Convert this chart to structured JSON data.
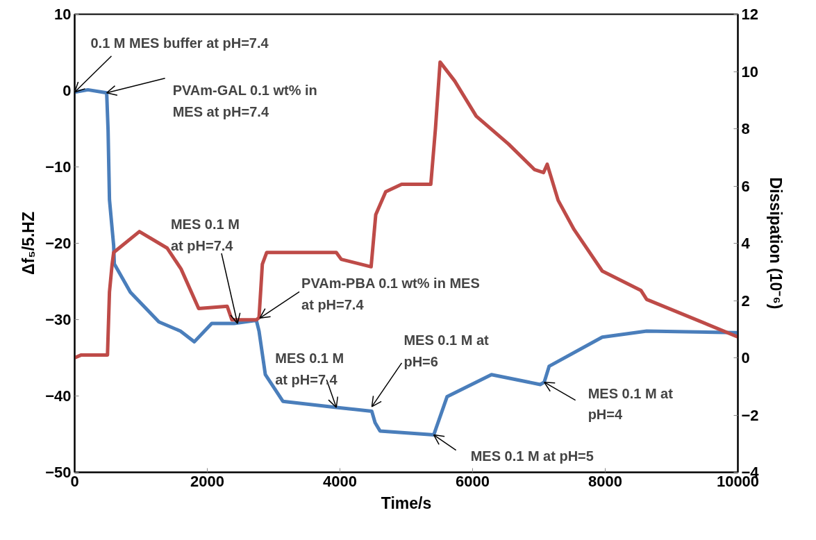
{
  "chart_data": {
    "type": "line",
    "xlabel": "Time/s",
    "ylabel": "Δf₅/5.HZ",
    "y2label": "Dissipation (10⁻⁶)",
    "xlim": [
      0,
      10000
    ],
    "xticks": [
      0,
      2000,
      4000,
      6000,
      8000,
      10000
    ],
    "ylim": [
      -50,
      10
    ],
    "yticks": [
      -50,
      -40,
      -30,
      -20,
      -10,
      0,
      10
    ],
    "y2lim": [
      -4,
      12
    ],
    "y2ticks": [
      -4,
      -2,
      0,
      2,
      4,
      6,
      8,
      10,
      12
    ],
    "grid": false,
    "marker": "none",
    "line_style": "solid",
    "series": [
      {
        "color": "#4a7ebb",
        "x": [
          0,
          200,
          483,
          504,
          525,
          588,
          598,
          840,
          1270,
          1595,
          1805,
          2067,
          2403,
          2740,
          2780,
          2875,
          3140,
          3945,
          4480,
          4530,
          4605,
          5415,
          5450,
          5615,
          6285,
          7020,
          7080,
          7155,
          7955,
          8625,
          9970,
          10000
        ],
        "values": [
          -0.2,
          0.1,
          -0.3,
          -5.2,
          -14.3,
          -20.3,
          -22.7,
          -26.4,
          -30.3,
          -31.5,
          -32.9,
          -30.5,
          -30.5,
          -30.1,
          -31.5,
          -37.2,
          -40.7,
          -41.5,
          -42,
          -43.5,
          -44.6,
          -45.1,
          -44.2,
          -40.1,
          -37.2,
          -38.5,
          -38.2,
          -36.1,
          -32.3,
          -31.5,
          -31.7,
          -31.8
        ]
      },
      {
        "color": "#be4b48",
        "axis": "y2",
        "x": [
          0,
          100,
          495,
          525,
          565,
          588,
          976,
          1396,
          1605,
          1870,
          2300,
          2370,
          2740,
          2780,
          2830,
          2896,
          3945,
          4020,
          4470,
          4540,
          4690,
          4930,
          5370,
          5440,
          5510,
          5730,
          6055,
          6540,
          6935,
          7070,
          7125,
          7290,
          7530,
          7955,
          8540,
          8625,
          10000
        ],
        "values": [
          0,
          0.1,
          0.1,
          2.3,
          3.27,
          3.68,
          4.41,
          3.83,
          3.1,
          1.72,
          1.8,
          1.33,
          1.33,
          1.4,
          3.27,
          3.68,
          3.68,
          3.44,
          3.18,
          5.0,
          5.8,
          6.06,
          6.06,
          8.0,
          10.33,
          9.67,
          8.44,
          7.47,
          6.57,
          6.47,
          6.76,
          5.5,
          4.48,
          3.03,
          2.35,
          2.04,
          0.73
        ]
      }
    ],
    "annotations": [
      {
        "text": "0.1 M MES buffer at  pH=7.4",
        "x": 0,
        "y": -0.2
      },
      {
        "text": "PVAm-GAL 0.1 wt% in\nMES at pH=7.4",
        "x": 483,
        "y": -0.3
      },
      {
        "text": "MES 0.1 M\nat pH=7.4",
        "x": 2455,
        "y": -30.5
      },
      {
        "text": "PVAm-PBA 0.1 wt% in MES\nat pH=7.4",
        "x": 2791,
        "y": -29.8
      },
      {
        "text": "MES 0.1 M\nat pH=7.4",
        "x": 3945,
        "y": -41.5
      },
      {
        "text": "MES 0.1 M at\npH=6",
        "x": 4481,
        "y": -41.4
      },
      {
        "text": "MES 0.1 M at pH=5",
        "x": 5415,
        "y": -45.1
      },
      {
        "text": "MES 0.1 M at\npH=4",
        "x": 7080,
        "y": -38.2
      }
    ]
  }
}
